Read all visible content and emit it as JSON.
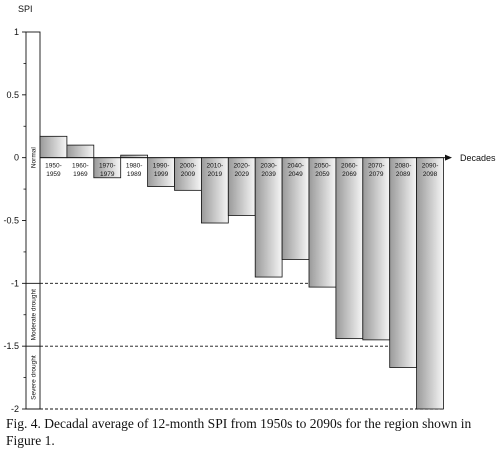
{
  "chart_data": {
    "type": "bar",
    "ylabel": "SPI",
    "xlabel": "Decades",
    "ylim": [
      -2,
      1
    ],
    "yticks": [
      "1",
      "0.5",
      "0",
      "-0.5",
      "-1",
      "-1.5",
      "-2"
    ],
    "ytick_values": [
      1,
      0.5,
      0,
      -0.5,
      -1,
      -1.5,
      -2
    ],
    "categories": [
      "1950-1959",
      "1960-1969",
      "1970-1979",
      "1980-1989",
      "1990-1999",
      "2000-2009",
      "2010-2019",
      "2020-2029",
      "2030-2039",
      "2040-2049",
      "2050-2059",
      "2060-2069",
      "2070-2079",
      "2080-2089",
      "2090-2098"
    ],
    "category_lines": [
      [
        "1950-",
        "1959"
      ],
      [
        "1960-",
        "1969"
      ],
      [
        "1970-",
        "1979"
      ],
      [
        "1980-",
        "1989"
      ],
      [
        "1990-",
        "1999"
      ],
      [
        "2000-",
        "2009"
      ],
      [
        "2010-",
        "2019"
      ],
      [
        "2020-",
        "2029"
      ],
      [
        "2030-",
        "2039"
      ],
      [
        "2040-",
        "2049"
      ],
      [
        "2050-",
        "2059"
      ],
      [
        "2060-",
        "2069"
      ],
      [
        "2070-",
        "2079"
      ],
      [
        "2080-",
        "2089"
      ],
      [
        "2090-",
        "2098"
      ]
    ],
    "values": [
      0.17,
      0.1,
      -0.16,
      0.02,
      -0.23,
      -0.26,
      -0.52,
      -0.46,
      -0.95,
      -0.81,
      -1.03,
      -1.44,
      -1.45,
      -1.67,
      -2.0
    ],
    "zones": [
      {
        "label": "Normal",
        "from": 1,
        "to": -1
      },
      {
        "label": "Moderate drought",
        "from": -1,
        "to": -1.5
      },
      {
        "label": "Severe drought",
        "from": -1.5,
        "to": -2
      }
    ],
    "thresholds": [
      -1,
      -1.5,
      -2
    ]
  },
  "caption": "Fig. 4. Decadal average of 12-month SPI from 1950s to 2090s for the region shown in Figure 1."
}
